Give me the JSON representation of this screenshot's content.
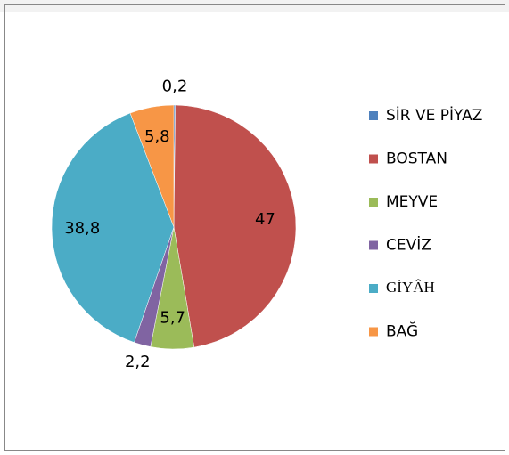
{
  "chart_data": {
    "type": "pie",
    "categories": [
      "SİR VE PİYAZ",
      "BOSTAN",
      "MEYVE",
      "CEVİZ",
      "GİYÂH",
      "BAĞ"
    ],
    "values": [
      0.2,
      47,
      5.7,
      2.2,
      38.8,
      5.8
    ],
    "value_labels": [
      "0,2",
      "47",
      "5,7",
      "2,2",
      "38,8",
      "5,8"
    ],
    "colors": [
      "#4f81bd",
      "#c0504d",
      "#9bbb59",
      "#8064a2",
      "#4bacc6",
      "#f79646"
    ],
    "legend": "right"
  }
}
